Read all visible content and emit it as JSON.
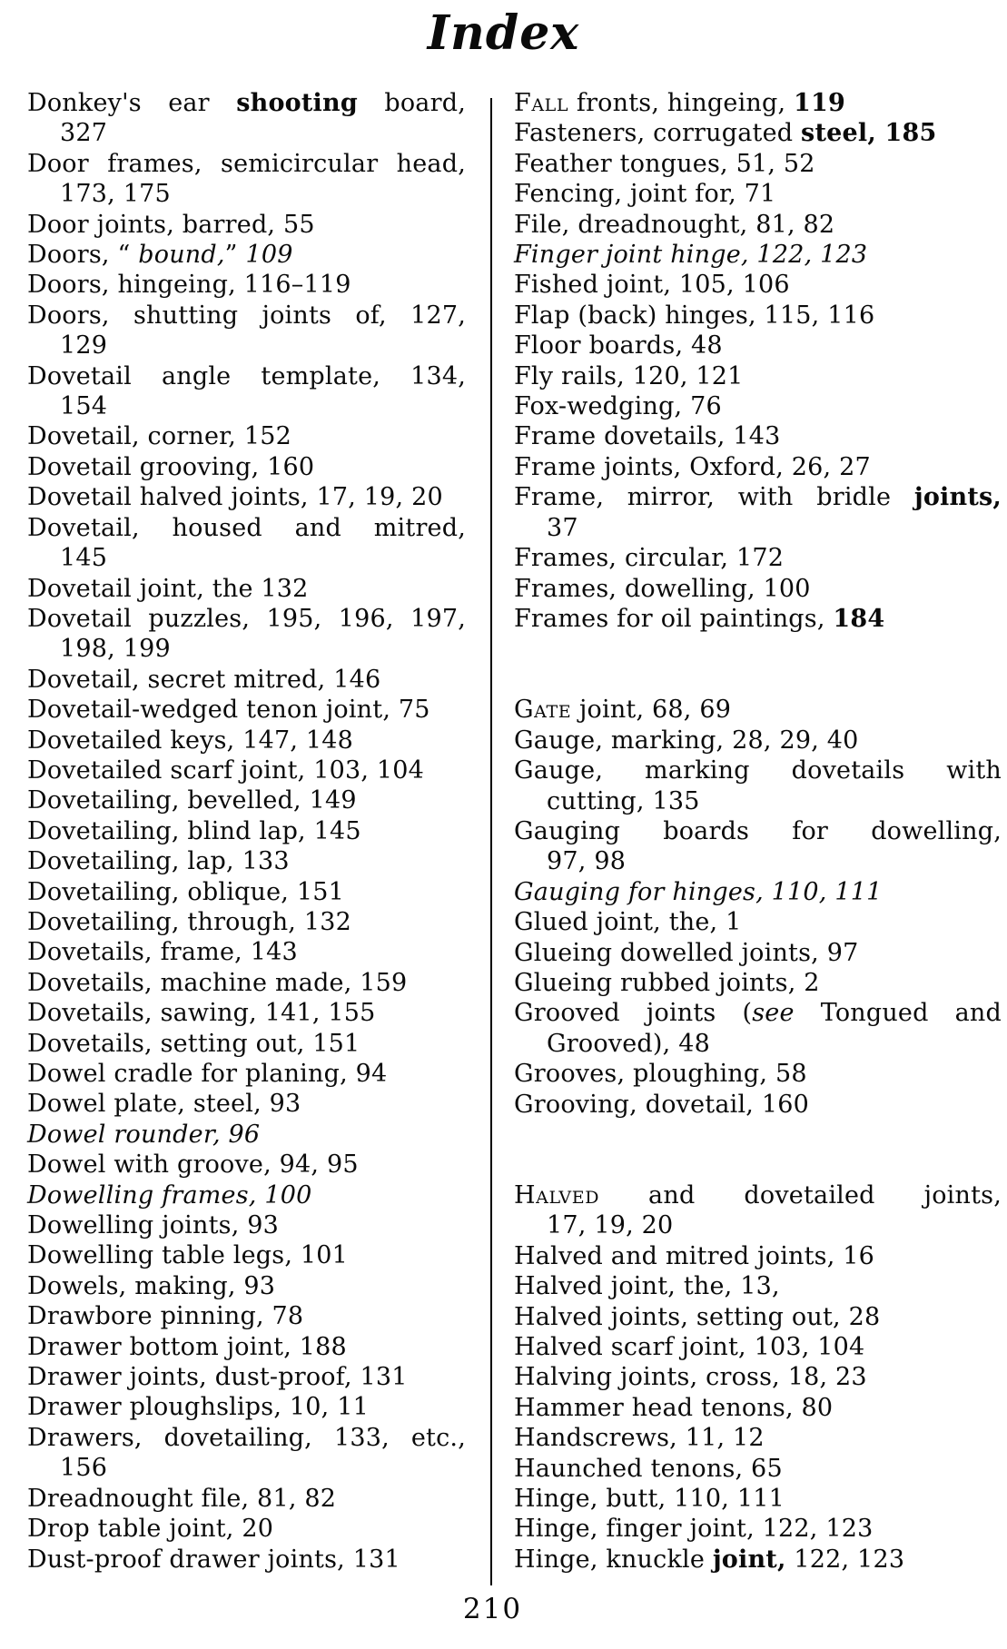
{
  "page": {
    "title": "Index",
    "page_number": "210"
  },
  "left_column": [
    {
      "lines": [
        [
          {
            "t": "Donkey's ear "
          },
          {
            "t": "shooting",
            "b": 1
          },
          {
            "t": " board,"
          }
        ],
        "327"
      ]
    },
    {
      "lines": [
        "Door frames, semicircular head,",
        "173, 175"
      ]
    },
    {
      "lines": [
        "Door joints, barred, 55"
      ]
    },
    {
      "lines": [
        [
          {
            "t": "Doors, “ "
          },
          {
            "t": "bound,",
            "i": 1
          },
          {
            "t": "” "
          },
          {
            "t": "109",
            "i": 1
          }
        ]
      ]
    },
    {
      "lines": [
        "Doors, hingeing, 116–119"
      ]
    },
    {
      "lines": [
        "Doors, shutting joints of, 127,",
        "129"
      ]
    },
    {
      "lines": [
        "Dovetail angle template, 134,",
        "154"
      ]
    },
    {
      "lines": [
        "Dovetail, corner, 152"
      ]
    },
    {
      "lines": [
        "Dovetail grooving, 160"
      ]
    },
    {
      "lines": [
        "Dovetail halved joints, 17, 19, 20"
      ]
    },
    {
      "lines": [
        "Dovetail, housed and mitred,",
        "145"
      ]
    },
    {
      "lines": [
        "Dovetail joint, the 132"
      ]
    },
    {
      "lines": [
        "Dovetail puzzles, 195, 196, 197,",
        "198, 199"
      ]
    },
    {
      "lines": [
        "Dovetail, secret mitred, 146"
      ]
    },
    {
      "lines": [
        "Dovetail-wedged tenon joint, 75"
      ]
    },
    {
      "lines": [
        "Dovetailed keys, 147, 148"
      ]
    },
    {
      "lines": [
        "Dovetailed scarf joint, 103, 104"
      ]
    },
    {
      "lines": [
        "Dovetailing, bevelled, 149"
      ]
    },
    {
      "lines": [
        "Dovetailing, blind lap, 145"
      ]
    },
    {
      "lines": [
        "Dovetailing, lap, 133"
      ]
    },
    {
      "lines": [
        "Dovetailing, oblique, 151"
      ]
    },
    {
      "lines": [
        "Dovetailing, through, 132"
      ]
    },
    {
      "lines": [
        "Dovetails, frame, 143"
      ]
    },
    {
      "lines": [
        "Dovetails, machine made, 159"
      ]
    },
    {
      "lines": [
        "Dovetails, sawing, 141, 155"
      ]
    },
    {
      "lines": [
        "Dovetails, setting out, 151"
      ]
    },
    {
      "lines": [
        "Dowel cradle for planing, 94"
      ]
    },
    {
      "lines": [
        "Dowel plate, steel, 93"
      ]
    },
    {
      "i": 1,
      "lines": [
        "Dowel rounder, 96"
      ]
    },
    {
      "lines": [
        "Dowel with groove, 94, 95"
      ]
    },
    {
      "i": 1,
      "lines": [
        "Dowelling frames, 100"
      ]
    },
    {
      "lines": [
        "Dowelling joints, 93"
      ]
    },
    {
      "lines": [
        "Dowelling table legs, 101"
      ]
    },
    {
      "lines": [
        "Dowels, making, 93"
      ]
    },
    {
      "lines": [
        "Drawbore pinning, 78"
      ]
    },
    {
      "lines": [
        "Drawer bottom joint, 188"
      ]
    },
    {
      "lines": [
        "Drawer joints, dust-proof, 131"
      ]
    },
    {
      "lines": [
        "Drawer ploughslips, 10, 11"
      ]
    },
    {
      "lines": [
        "Drawers, dovetailing, 133, etc.,",
        "156"
      ]
    },
    {
      "lines": [
        "Dreadnought file, 81, 82"
      ]
    },
    {
      "lines": [
        "Drop table joint, 20"
      ]
    },
    {
      "lines": [
        "Dust-proof drawer joints, 131"
      ]
    }
  ],
  "right_column": [
    {
      "lines": [
        [
          {
            "t": "Fall",
            "sc": 1
          },
          {
            "t": " fronts, hingeing, "
          },
          {
            "t": "119",
            "b": 1
          }
        ]
      ]
    },
    {
      "lines": [
        [
          {
            "t": "Fasteners, corrugated "
          },
          {
            "t": "steel, 185",
            "b": 1
          }
        ]
      ]
    },
    {
      "lines": [
        "Feather tongues, 51, 52"
      ]
    },
    {
      "lines": [
        "Fencing, joint for, 71"
      ]
    },
    {
      "lines": [
        "File, dreadnought, 81, 82"
      ]
    },
    {
      "i": 1,
      "lines": [
        "Finger joint hinge, 122, 123"
      ]
    },
    {
      "lines": [
        "Fished joint, 105, 106"
      ]
    },
    {
      "lines": [
        "Flap (back) hinges, 115, 116"
      ]
    },
    {
      "lines": [
        "Floor boards, 48"
      ]
    },
    {
      "lines": [
        "Fly rails, 120, 121"
      ]
    },
    {
      "lines": [
        "Fox-wedging, 76"
      ]
    },
    {
      "lines": [
        "Frame dovetails, 143"
      ]
    },
    {
      "lines": [
        "Frame joints, Oxford, 26, 27"
      ]
    },
    {
      "lines": [
        [
          {
            "t": "Frame, mirror, with bridle "
          },
          {
            "t": "joints,",
            "b": 1
          }
        ],
        "37"
      ]
    },
    {
      "lines": [
        "Frames, circular, 172"
      ]
    },
    {
      "lines": [
        "Frames, dowelling, 100"
      ]
    },
    {
      "lines": [
        [
          {
            "t": "Frames for oil paintings, "
          },
          {
            "t": "184",
            "b": 1
          }
        ]
      ]
    },
    {
      "gap": 1,
      "lines": [
        [
          {
            "t": "Gate",
            "sc": 1
          },
          {
            "t": " joint, 68, 69"
          }
        ]
      ]
    },
    {
      "lines": [
        "Gauge, marking, 28, 29, 40"
      ]
    },
    {
      "lines": [
        "Gauge, marking dovetails with",
        "cutting, 135"
      ]
    },
    {
      "lines": [
        "Gauging boards for dowelling,",
        "97, 98"
      ]
    },
    {
      "i": 1,
      "lines": [
        "Gauging for hinges, 110, 111"
      ]
    },
    {
      "lines": [
        "Glued joint, the, 1"
      ]
    },
    {
      "lines": [
        "Glueing dowelled joints, 97"
      ]
    },
    {
      "lines": [
        "Glueing rubbed joints, 2"
      ]
    },
    {
      "lines": [
        [
          {
            "t": "Grooved joints ("
          },
          {
            "t": "see",
            "i": 1
          },
          {
            "t": " Tongued and"
          }
        ],
        "Grooved), 48"
      ]
    },
    {
      "lines": [
        "Grooves, ploughing, 58"
      ]
    },
    {
      "lines": [
        "Grooving, dovetail, 160"
      ]
    },
    {
      "gap": 1,
      "lines": [
        [
          {
            "t": "Halved",
            "sc": 1
          },
          {
            "t": " and dovetailed joints,"
          }
        ],
        "17, 19, 20"
      ]
    },
    {
      "lines": [
        "Halved and mitred joints, 16"
      ]
    },
    {
      "lines": [
        "Halved joint, the, 13,"
      ]
    },
    {
      "lines": [
        "Halved joints, setting out, 28"
      ]
    },
    {
      "lines": [
        "Halved scarf joint, 103, 104"
      ]
    },
    {
      "lines": [
        "Halving joints, cross, 18, 23"
      ]
    },
    {
      "lines": [
        "Hammer head tenons, 80"
      ]
    },
    {
      "lines": [
        "Handscrews, 11, 12"
      ]
    },
    {
      "lines": [
        "Haunched tenons, 65"
      ]
    },
    {
      "lines": [
        "Hinge, butt, 110, 111"
      ]
    },
    {
      "lines": [
        "Hinge, finger joint, 122, 123"
      ]
    },
    {
      "lines": [
        [
          {
            "t": "Hinge, knuckle "
          },
          {
            "t": "joint,",
            "b": 1
          },
          {
            "t": " 122, 123"
          }
        ]
      ]
    }
  ]
}
